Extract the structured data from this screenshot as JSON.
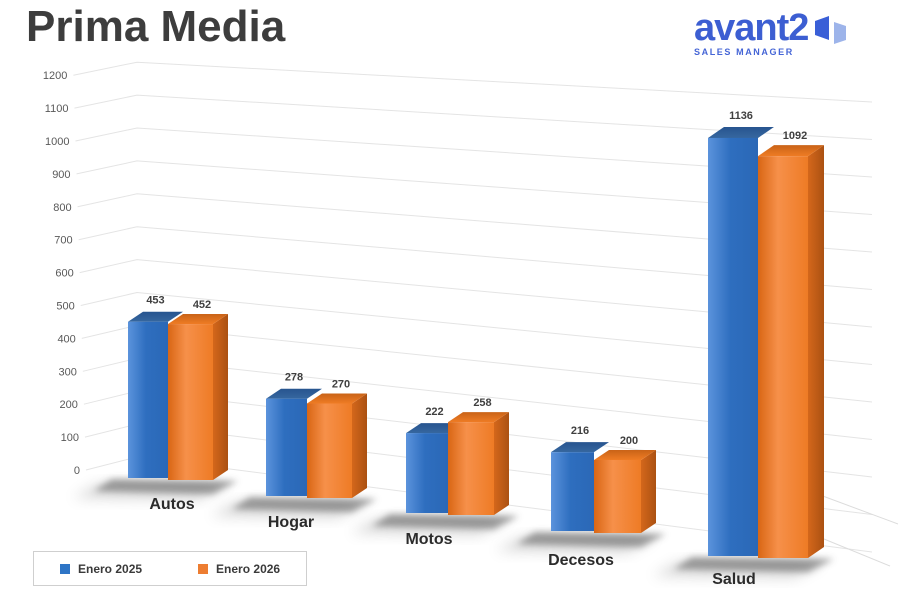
{
  "page": {
    "title": "Prima Media"
  },
  "logo": {
    "brand": "avant2",
    "tagline": "SALES MANAGER",
    "brand_color": "#3c5ed2",
    "icon": "avant2-door-icon",
    "icon_color_dark": "#3a5fd7",
    "icon_color_light": "#9db4ea"
  },
  "chart_data": {
    "type": "bar",
    "style": "3d-clustered-column",
    "title": "Prima Media",
    "xlabel": "",
    "ylabel": "",
    "categories": [
      "Autos",
      "Hogar",
      "Motos",
      "Decesos",
      "Salud"
    ],
    "series": [
      {
        "name": "Enero 2025",
        "color": "#2e75c6",
        "values": [
          453,
          278,
          222,
          216,
          1136
        ]
      },
      {
        "name": "Enero 2026",
        "color": "#ed7d31",
        "values": [
          452,
          270,
          258,
          200,
          1092
        ]
      }
    ],
    "ylim": [
      0,
      1200
    ],
    "ytick_step": 100,
    "yticks": [
      0,
      100,
      200,
      300,
      400,
      500,
      600,
      700,
      800,
      900,
      1000,
      1100,
      1200
    ],
    "grid": true,
    "value_labels": true,
    "legend_position": "bottom-left",
    "gridline_color": "#e4e4e4",
    "tick_color": "#595959",
    "label_color": "#3f3f3f"
  }
}
